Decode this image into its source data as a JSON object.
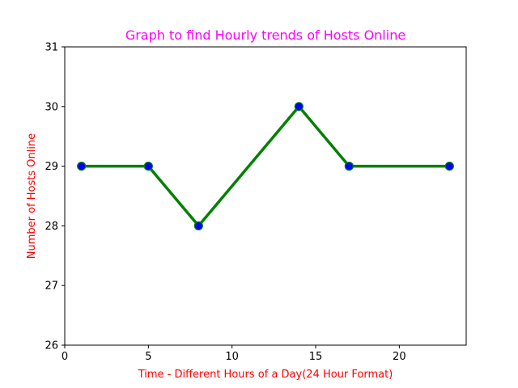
{
  "chart_data": {
    "type": "line",
    "title": "Graph to find Hourly trends of Hosts Online",
    "xlabel": "Time - Different Hours of a Day(24 Hour Format)",
    "ylabel": "Number of Hosts Online",
    "xlim": [
      0,
      24
    ],
    "ylim": [
      26,
      31
    ],
    "x_ticks": [
      0,
      5,
      10,
      15,
      20
    ],
    "y_ticks": [
      26,
      27,
      28,
      29,
      30,
      31
    ],
    "x_tick_labels": [
      "0",
      "5",
      "10",
      "15",
      "20"
    ],
    "y_tick_labels": [
      "26",
      "27",
      "28",
      "29",
      "30",
      "31"
    ],
    "grid": false,
    "series": [
      {
        "x": [
          1,
          5,
          8,
          14,
          17,
          23
        ],
        "y": [
          29,
          29,
          28,
          30,
          29,
          29
        ],
        "line_color": "#008000",
        "marker_face_color": "#0000ff",
        "marker_edge_color": "#008000"
      }
    ],
    "colors": {
      "title": "#ff00ff",
      "axis_labels": "#ff0000"
    }
  }
}
